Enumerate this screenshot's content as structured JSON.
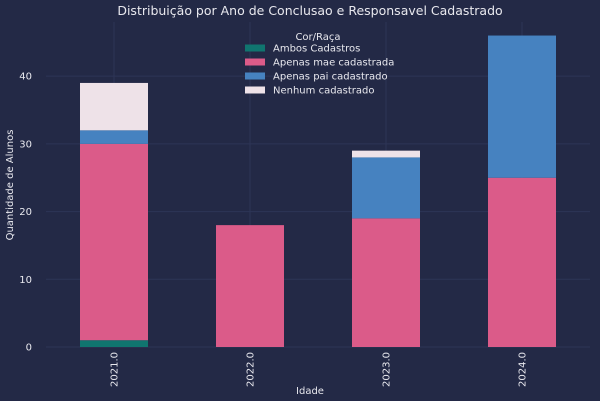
{
  "chart_data": {
    "type": "bar",
    "stacked": true,
    "title": "Distribuição por Ano de Conclusao e Responsavel Cadastrado",
    "xlabel": "Idade",
    "ylabel": "Quantidade de Alunos",
    "categories": [
      "2021.0",
      "2022.0",
      "2023.0",
      "2024.0"
    ],
    "ylim": [
      0,
      48
    ],
    "yticks": [
      0,
      10,
      20,
      30,
      40
    ],
    "grid": true,
    "legend": {
      "title": "Cor/Raça",
      "placement": "top-center"
    },
    "series": [
      {
        "name": "Ambos Cadastros",
        "color": "#10756f",
        "values": [
          1,
          0,
          0,
          0
        ]
      },
      {
        "name": "Apenas mae cadastrada",
        "color": "#db5b89",
        "values": [
          29,
          18,
          19,
          25
        ]
      },
      {
        "name": "Apenas pai cadastrado",
        "color": "#4682c0",
        "values": [
          2,
          0,
          9,
          21
        ]
      },
      {
        "name": "Nenhum cadastrado",
        "color": "#eee2e8",
        "values": [
          7,
          0,
          1,
          0
        ]
      }
    ],
    "colors": {
      "background": "#232946",
      "grid": "#2d3556",
      "text": "#e8e8ee"
    }
  }
}
